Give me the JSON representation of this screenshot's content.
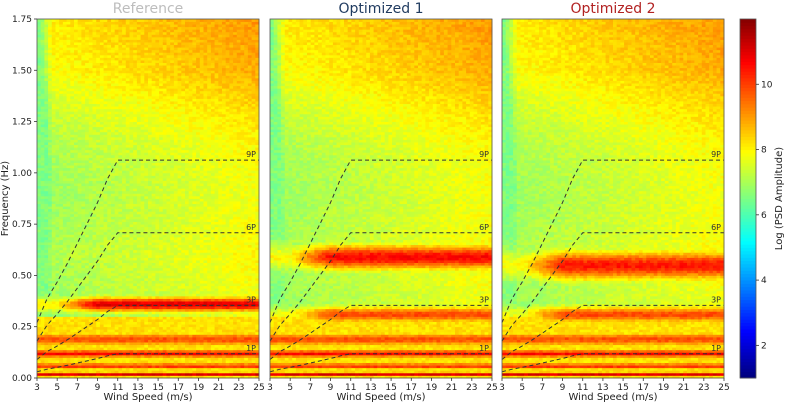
{
  "chart_data": {
    "type": "heatmap",
    "colorbar": {
      "label": "Log (PSD Amplitude)",
      "range": [
        1,
        12
      ],
      "ticks": [
        "2",
        "4",
        "6",
        "8",
        "10"
      ],
      "tick_values": [
        2,
        4,
        6,
        8,
        10
      ]
    },
    "y_axis": {
      "label": "Frequency (Hz)",
      "range": [
        0,
        1.75
      ],
      "ticks": [
        "0.00",
        "0.25",
        "0.50",
        "0.75",
        "1.00",
        "1.25",
        "1.50",
        "1.75"
      ],
      "tick_values": [
        0,
        0.25,
        0.5,
        0.75,
        1.0,
        1.25,
        1.5,
        1.75
      ]
    },
    "x_axis": {
      "label": "Wind Speed (m/s)",
      "range": [
        3,
        25
      ],
      "ticks": [
        "3",
        "5",
        "7",
        "9",
        "11",
        "13",
        "15",
        "17",
        "19",
        "21",
        "23",
        "25"
      ],
      "tick_values": [
        3,
        5,
        7,
        9,
        11,
        13,
        15,
        17,
        19,
        21,
        23,
        25
      ]
    },
    "harmonics": {
      "labels": [
        "1P",
        "3P",
        "6P",
        "9P"
      ],
      "multipliers": [
        1,
        3,
        6,
        9
      ],
      "rotor_speed_hz": {
        "wind": [
          3,
          4,
          5,
          6,
          7,
          8,
          9,
          10,
          11,
          12,
          25
        ],
        "freq": [
          0.03,
          0.043,
          0.052,
          0.062,
          0.073,
          0.084,
          0.095,
          0.108,
          0.118,
          0.118,
          0.118
        ]
      }
    },
    "panels": [
      {
        "title": "Reference",
        "title_color": "#bdbdbd",
        "bands": [
          {
            "f": 0.02,
            "w": 0.012,
            "v": 11.0
          },
          {
            "f": 0.06,
            "w": 0.015,
            "v": 10.2
          },
          {
            "f": 0.12,
            "w": 0.02,
            "v": 10.6
          },
          {
            "f": 0.19,
            "w": 0.035,
            "v": 9.8
          },
          {
            "f": 0.36,
            "w": 0.035,
            "v": 11.0
          }
        ]
      },
      {
        "title": "Optimized 1",
        "title_color": "#1f3a5f",
        "bands": [
          {
            "f": 0.02,
            "w": 0.012,
            "v": 11.0
          },
          {
            "f": 0.06,
            "w": 0.015,
            "v": 10.2
          },
          {
            "f": 0.12,
            "w": 0.02,
            "v": 10.6
          },
          {
            "f": 0.19,
            "w": 0.035,
            "v": 9.8
          },
          {
            "f": 0.31,
            "w": 0.04,
            "v": 9.9
          },
          {
            "f": 0.59,
            "w": 0.06,
            "v": 10.6
          }
        ]
      },
      {
        "title": "Optimized 2",
        "title_color": "#b22222",
        "bands": [
          {
            "f": 0.02,
            "w": 0.012,
            "v": 11.0
          },
          {
            "f": 0.06,
            "w": 0.015,
            "v": 10.2
          },
          {
            "f": 0.12,
            "w": 0.02,
            "v": 10.6
          },
          {
            "f": 0.19,
            "w": 0.035,
            "v": 9.8
          },
          {
            "f": 0.31,
            "w": 0.04,
            "v": 9.9
          },
          {
            "f": 0.55,
            "w": 0.07,
            "v": 10.4
          }
        ]
      }
    ]
  }
}
